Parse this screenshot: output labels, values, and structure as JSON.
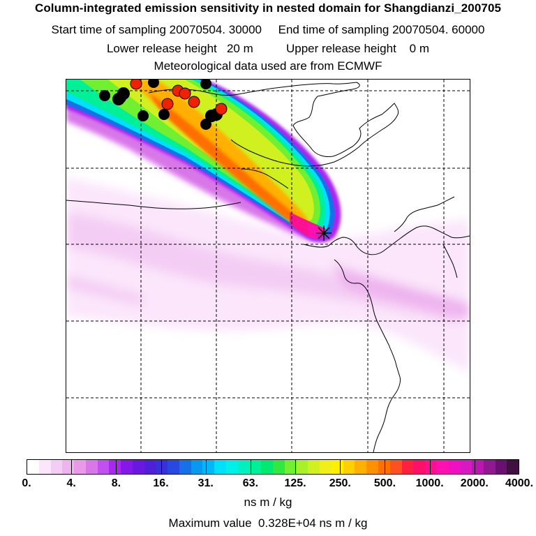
{
  "header": {
    "title": "Column-integrated emission sensitivity in nested domain for Shangdianzi_200705",
    "sampling": "Start time of sampling 20070504. 30000     End time of sampling 20070504. 60000",
    "release": "Lower release height   20 m          Upper release height    0 m",
    "met": "Meteorological data used are from ECMWF"
  },
  "colorbar": {
    "tick_labels": [
      "0.",
      "4.",
      "8.",
      "16.",
      "31.",
      "63.",
      "125.",
      "250.",
      "500.",
      "1000.",
      "2000.",
      "4000."
    ],
    "colors": [
      "#ffffff",
      "#fbe6fb",
      "#f4cdf4",
      "#eeb4ee",
      "#e89ae8",
      "#d877e8",
      "#c250f0",
      "#a828f0",
      "#8418e8",
      "#6a18e0",
      "#4e20d8",
      "#3a30d8",
      "#2848e0",
      "#1870e8",
      "#0898f0",
      "#00b8f8",
      "#00e0f8",
      "#00f0e8",
      "#00f0c0",
      "#00f098",
      "#00e870",
      "#30e840",
      "#70f030",
      "#a8f028",
      "#d0f020",
      "#f0f018",
      "#fff000",
      "#ffd000",
      "#ffb000",
      "#ff9000",
      "#ff7000",
      "#ff5020",
      "#ff2040",
      "#ff1068",
      "#ff1090",
      "#ff10b0",
      "#f010c0",
      "#d818c0",
      "#b818b0",
      "#901890",
      "#6a1070",
      "#401040"
    ],
    "units": "ns m / kg"
  },
  "max_value": "Maximum value  0.328E+04 ns m / kg",
  "map": {
    "receptor": "Shangdianzi",
    "receptor_marker": "asterisk",
    "particle_marker_colors": [
      "#000000",
      "#ee2200"
    ]
  }
}
